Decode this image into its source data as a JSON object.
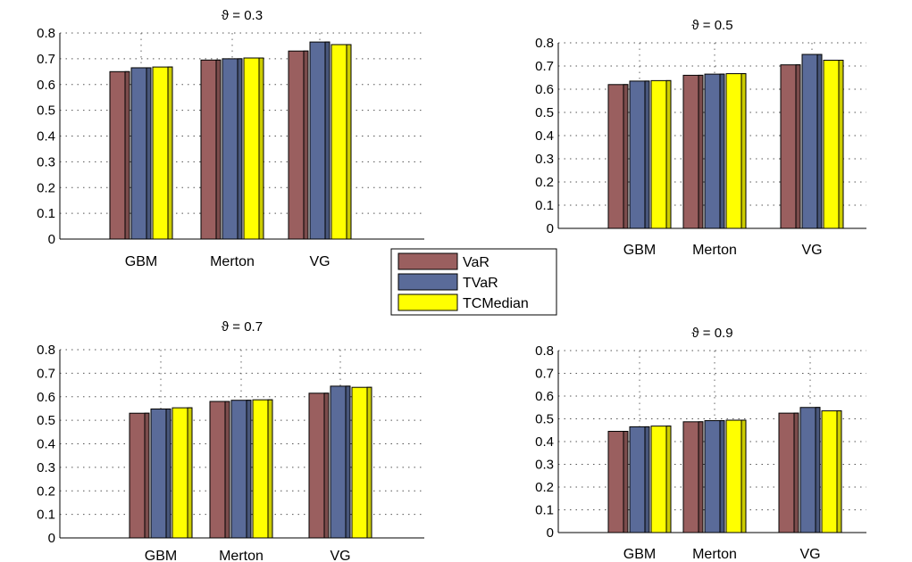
{
  "legend": {
    "entries": [
      "VaR",
      "TVaR",
      "TCMedian"
    ],
    "colors": [
      "#9a5f5f",
      "#5a6b99",
      "#ffff00"
    ]
  },
  "chart_data": [
    {
      "type": "bar",
      "title": "ϑ = 0.3",
      "categories": [
        "GBM",
        "Merton",
        "VG"
      ],
      "series": [
        {
          "name": "VaR",
          "values": [
            0.65,
            0.695,
            0.73
          ]
        },
        {
          "name": "TVaR",
          "values": [
            0.665,
            0.7,
            0.765
          ]
        },
        {
          "name": "TCMedian",
          "values": [
            0.668,
            0.703,
            0.755
          ]
        }
      ],
      "ylim": [
        0,
        0.8
      ],
      "yticks": [
        "0",
        "0.1",
        "0.2",
        "0.3",
        "0.4",
        "0.5",
        "0.6",
        "0.7",
        "0.8"
      ],
      "grid": true
    },
    {
      "type": "bar",
      "title": "ϑ = 0.5",
      "categories": [
        "GBM",
        "Merton",
        "VG"
      ],
      "series": [
        {
          "name": "VaR",
          "values": [
            0.62,
            0.66,
            0.705
          ]
        },
        {
          "name": "TVaR",
          "values": [
            0.635,
            0.665,
            0.75
          ]
        },
        {
          "name": "TCMedian",
          "values": [
            0.637,
            0.667,
            0.725
          ]
        }
      ],
      "ylim": [
        0,
        0.8
      ],
      "yticks": [
        "0",
        "0.1",
        "0.2",
        "0.3",
        "0.4",
        "0.5",
        "0.6",
        "0.7",
        "0.8"
      ],
      "grid": true
    },
    {
      "type": "bar",
      "title": "ϑ = 0.7",
      "categories": [
        "GBM",
        "Merton",
        "VG"
      ],
      "series": [
        {
          "name": "VaR",
          "values": [
            0.53,
            0.58,
            0.615
          ]
        },
        {
          "name": "TVaR",
          "values": [
            0.548,
            0.585,
            0.645
          ]
        },
        {
          "name": "TCMedian",
          "values": [
            0.553,
            0.587,
            0.64
          ]
        }
      ],
      "ylim": [
        0,
        0.8
      ],
      "yticks": [
        "0",
        "0.1",
        "0.2",
        "0.3",
        "0.4",
        "0.5",
        "0.6",
        "0.7",
        "0.8"
      ],
      "grid": true
    },
    {
      "type": "bar",
      "title": "ϑ = 0.9",
      "categories": [
        "GBM",
        "Merton",
        "VG"
      ],
      "series": [
        {
          "name": "VaR",
          "values": [
            0.445,
            0.487,
            0.525
          ]
        },
        {
          "name": "TVaR",
          "values": [
            0.465,
            0.492,
            0.55
          ]
        },
        {
          "name": "TCMedian",
          "values": [
            0.468,
            0.494,
            0.535
          ]
        }
      ],
      "ylim": [
        0,
        0.8
      ],
      "yticks": [
        "0",
        "0.1",
        "0.2",
        "0.3",
        "0.4",
        "0.5",
        "0.6",
        "0.7",
        "0.8"
      ],
      "grid": true
    }
  ]
}
